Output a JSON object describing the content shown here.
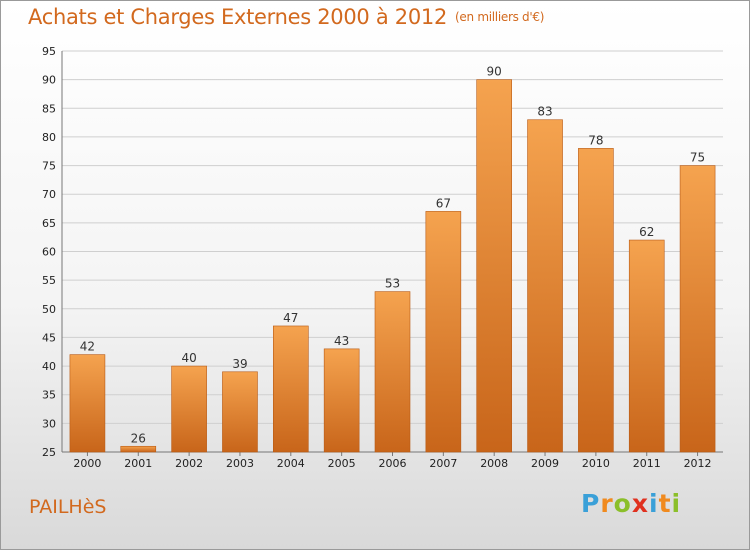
{
  "header": {
    "title": "Achats et Charges Externes 2000 à 2012",
    "subtitle": "(en milliers d'€)"
  },
  "footer": {
    "commune": "PAILHèS",
    "brand_letters": [
      "P",
      "r",
      "o",
      "x",
      "i",
      "t",
      "i"
    ],
    "brand_colors": [
      "#3aa0d8",
      "#f08a1e",
      "#8bbf2a",
      "#e0311f",
      "#3aa0d8",
      "#f08a1e",
      "#8bbf2a"
    ]
  },
  "colors": {
    "accent": "#d2691e",
    "bar_top": "#f5a34f",
    "bar_bottom": "#c8651a",
    "grid": "#cfcfcf"
  },
  "chart_data": {
    "type": "bar",
    "categories": [
      "2000",
      "2001",
      "2002",
      "2003",
      "2004",
      "2005",
      "2006",
      "2007",
      "2008",
      "2009",
      "2010",
      "2011",
      "2012"
    ],
    "values": [
      42,
      26,
      40,
      39,
      47,
      43,
      53,
      67,
      90,
      83,
      78,
      62,
      75
    ],
    "title": "Achats et Charges Externes 2000 à 2012",
    "subtitle": "(en milliers d'€)",
    "xlabel": "",
    "ylabel": "",
    "ylim": [
      25,
      95
    ],
    "yticks": [
      25,
      30,
      35,
      40,
      45,
      50,
      55,
      60,
      65,
      70,
      75,
      80,
      85,
      90,
      95
    ],
    "grid": true,
    "data_labels": true
  }
}
